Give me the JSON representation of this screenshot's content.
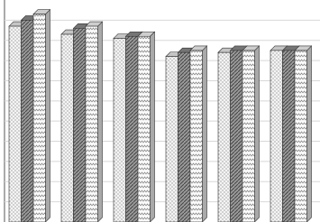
{
  "chart_data": {
    "type": "bar3d",
    "categories": [
      null,
      null,
      null,
      null,
      null,
      null
    ],
    "series": [
      {
        "color": "#e8e8e8",
        "values": [
          9.7,
          9.3,
          9.1,
          8.2,
          8.4,
          8.5
        ]
      },
      {
        "color": "#8a8a8a",
        "values": [
          10.0,
          9.6,
          9.2,
          8.4,
          8.5,
          8.5
        ]
      },
      {
        "color": "#f2f2f2",
        "values": [
          10.3,
          9.7,
          9.2,
          8.5,
          8.5,
          8.5
        ]
      }
    ],
    "ylim": [
      0,
      11
    ],
    "yticks": [
      1,
      2,
      3,
      4,
      5,
      6,
      7,
      8,
      9,
      10
    ],
    "grid": true
  }
}
